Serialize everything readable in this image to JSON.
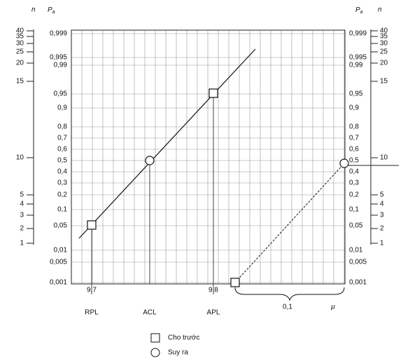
{
  "header": {
    "n_left": "n",
    "pa_left": "P",
    "pa_left_sub": "a",
    "pa_right": "P",
    "pa_right_sub": "a",
    "n_right": "n"
  },
  "pa_scale": [
    "0,999",
    "0,995",
    "0,99",
    "0,95",
    "0,9",
    "0,8",
    "0,7",
    "0,6",
    "0,5",
    "0,4",
    "0,3",
    "0,2",
    "0,1",
    "0,05",
    "0,01",
    "0,005",
    "0,001"
  ],
  "n_scale": [
    "40",
    "35",
    "30",
    "25",
    "20",
    "15",
    "10",
    "5",
    "4",
    "3",
    "2",
    "1"
  ],
  "points": {
    "rpl": {
      "label": "RPL",
      "value": "9,7"
    },
    "acl": {
      "label": "ACL"
    },
    "apl": {
      "label": "APL",
      "value": "9,8"
    }
  },
  "interval": {
    "value": "0,1",
    "symbol": "μ"
  },
  "legend": [
    "Cho trước",
    "Suy ra"
  ]
}
